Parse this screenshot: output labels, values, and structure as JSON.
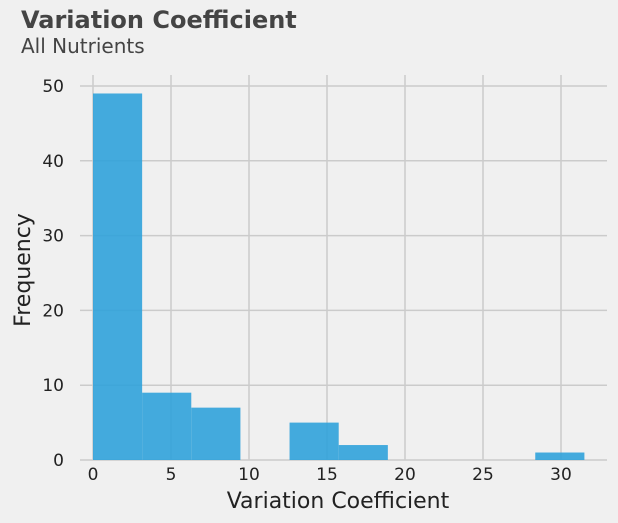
{
  "chart_data": {
    "type": "histogram",
    "title": "Variation Coefficient",
    "subtitle": "All Nutrients",
    "xlabel": "Variation Coefficient",
    "ylabel": "Frequency",
    "xlim": [
      -1.6,
      32.9
    ],
    "ylim": [
      0,
      50
    ],
    "xticks": [
      0,
      5,
      10,
      15,
      20,
      25,
      30
    ],
    "yticks": [
      0,
      10,
      20,
      30,
      40,
      50
    ],
    "grid": true,
    "bar_color": "#30a2da",
    "bins": [
      {
        "start": 0.0,
        "end": 3.15,
        "count": 49
      },
      {
        "start": 3.15,
        "end": 6.3,
        "count": 9
      },
      {
        "start": 6.3,
        "end": 9.45,
        "count": 7
      },
      {
        "start": 9.45,
        "end": 12.6,
        "count": 0
      },
      {
        "start": 12.6,
        "end": 15.75,
        "count": 5
      },
      {
        "start": 15.75,
        "end": 18.9,
        "count": 2
      },
      {
        "start": 18.9,
        "end": 22.05,
        "count": 0
      },
      {
        "start": 22.05,
        "end": 25.2,
        "count": 0
      },
      {
        "start": 25.2,
        "end": 28.35,
        "count": 0
      },
      {
        "start": 28.35,
        "end": 31.5,
        "count": 1
      }
    ]
  }
}
